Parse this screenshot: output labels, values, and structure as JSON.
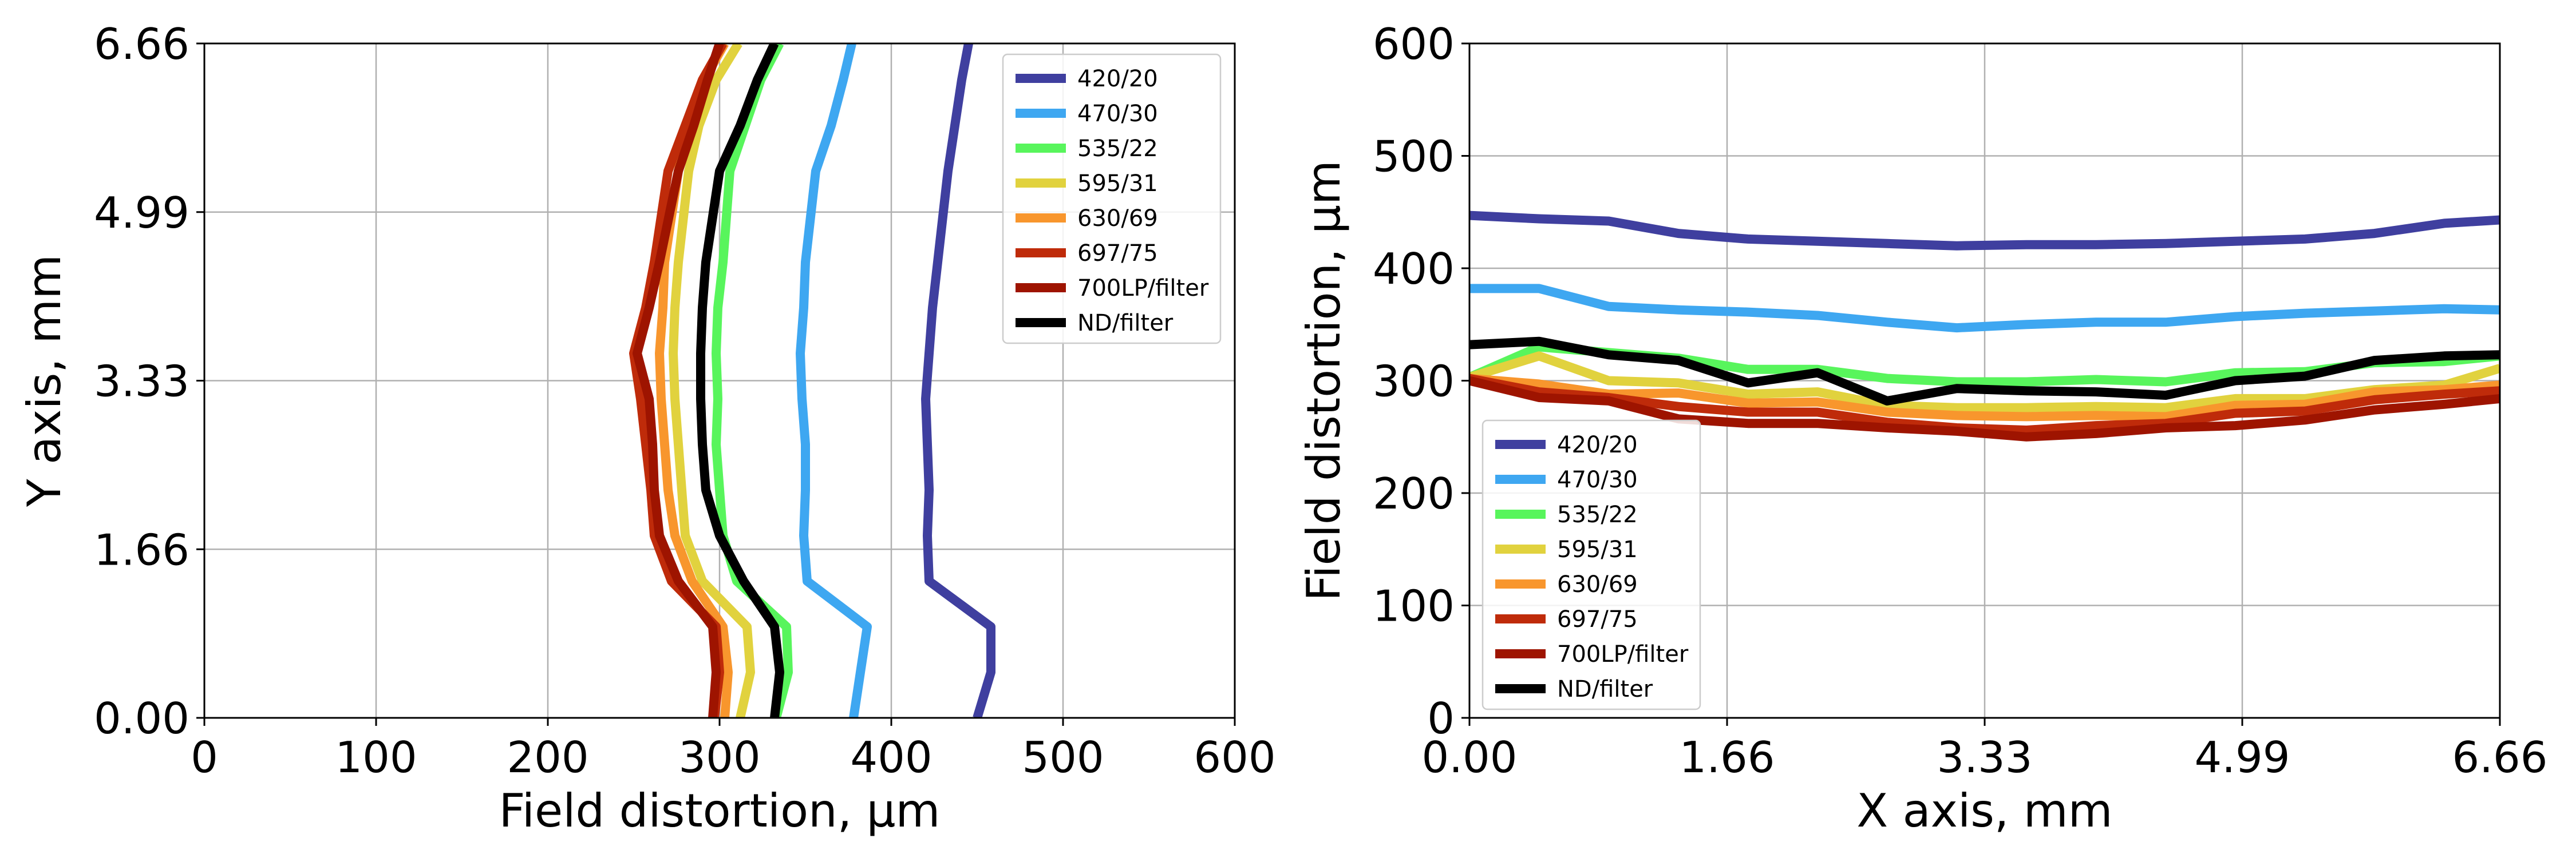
{
  "chart_data": [
    {
      "type": "line",
      "xlabel": "Field distortion, µm",
      "ylabel": "Y axis, mm",
      "xlim": [
        0,
        600
      ],
      "ylim": [
        0,
        6.66
      ],
      "xticks": [
        "0",
        "100",
        "200",
        "300",
        "400",
        "500",
        "600"
      ],
      "yticks": [
        "0.00",
        "1.66",
        "3.33",
        "4.99",
        "6.66"
      ],
      "grid": true,
      "legend_position": "top-right",
      "series": [
        {
          "name": "420/20",
          "color": "#3f3f9f",
          "x": [
            450,
            458,
            458,
            422,
            421,
            422,
            421,
            420,
            422,
            424,
            427,
            433,
            437,
            441,
            445
          ],
          "y": [
            0.0,
            0.45,
            0.9,
            1.35,
            1.8,
            2.25,
            2.7,
            3.15,
            3.6,
            4.05,
            4.5,
            5.4,
            5.85,
            6.3,
            6.66
          ]
        },
        {
          "name": "470/30",
          "color": "#3ea7f1",
          "x": [
            378,
            382,
            386,
            351,
            349,
            350,
            350,
            348,
            347,
            349,
            350,
            356,
            365,
            372,
            377
          ],
          "y": [
            0.0,
            0.45,
            0.9,
            1.35,
            1.8,
            2.25,
            2.7,
            3.15,
            3.6,
            4.05,
            4.5,
            5.4,
            5.85,
            6.3,
            6.66
          ]
        },
        {
          "name": "535/22",
          "color": "#58f55c",
          "x": [
            333,
            340,
            339,
            310,
            302,
            300,
            298,
            299,
            298,
            299,
            302,
            306,
            315,
            324,
            335
          ],
          "y": [
            0.0,
            0.45,
            0.9,
            1.35,
            1.8,
            2.25,
            2.7,
            3.15,
            3.6,
            4.05,
            4.5,
            5.4,
            5.85,
            6.3,
            6.66
          ]
        },
        {
          "name": "595/31",
          "color": "#e1d23e",
          "x": [
            312,
            318,
            316,
            290,
            280,
            278,
            276,
            274,
            273,
            274,
            276,
            282,
            288,
            298,
            311
          ],
          "y": [
            0.0,
            0.45,
            0.9,
            1.35,
            1.8,
            2.25,
            2.7,
            3.15,
            3.6,
            4.05,
            4.5,
            5.4,
            5.85,
            6.3,
            6.66
          ]
        },
        {
          "name": "630/69",
          "color": "#f8962d",
          "x": [
            303,
            305,
            302,
            284,
            274,
            270,
            268,
            266,
            265,
            267,
            268,
            276,
            282,
            291,
            303
          ],
          "y": [
            0.0,
            0.45,
            0.9,
            1.35,
            1.8,
            2.25,
            2.7,
            3.15,
            3.6,
            4.05,
            4.5,
            5.4,
            5.85,
            6.3,
            6.66
          ]
        },
        {
          "name": "697/75",
          "color": "#bf2b0a",
          "x": [
            297,
            300,
            298,
            272,
            262,
            260,
            257,
            254,
            250,
            257,
            262,
            270,
            280,
            290,
            302
          ],
          "y": [
            0.0,
            0.45,
            0.9,
            1.35,
            1.8,
            2.25,
            2.7,
            3.15,
            3.6,
            4.05,
            4.5,
            5.4,
            5.85,
            6.3,
            6.66
          ]
        },
        {
          "name": "700LP/filter",
          "color": "#9e1400",
          "x": [
            296,
            298,
            296,
            276,
            265,
            262,
            261,
            259,
            252,
            259,
            265,
            276,
            285,
            293,
            300
          ],
          "y": [
            0.0,
            0.45,
            0.9,
            1.35,
            1.8,
            2.25,
            2.7,
            3.15,
            3.6,
            4.05,
            4.5,
            5.4,
            5.85,
            6.3,
            6.66
          ]
        },
        {
          "name": "ND/filter",
          "color": "#000000",
          "x": [
            332,
            335,
            332,
            314,
            300,
            292,
            290,
            289,
            289,
            290,
            292,
            300,
            312,
            322,
            332
          ],
          "y": [
            0.0,
            0.45,
            0.9,
            1.35,
            1.8,
            2.25,
            2.7,
            3.15,
            3.6,
            4.05,
            4.5,
            5.4,
            5.85,
            6.3,
            6.66
          ]
        }
      ]
    },
    {
      "type": "line",
      "xlabel": "X axis, mm",
      "ylabel": "Field distortion, µm",
      "xlim": [
        0,
        6.66
      ],
      "ylim": [
        0,
        600
      ],
      "xticks": [
        "0.00",
        "1.66",
        "3.33",
        "4.99",
        "6.66"
      ],
      "yticks": [
        "0",
        "100",
        "200",
        "300",
        "400",
        "500",
        "600"
      ],
      "grid": true,
      "legend_position": "lower-left",
      "series": [
        {
          "name": "420/20",
          "color": "#3f3f9f",
          "x": [
            0.0,
            0.45,
            0.9,
            1.35,
            1.8,
            2.25,
            2.7,
            3.15,
            3.6,
            4.05,
            4.5,
            4.95,
            5.4,
            5.85,
            6.3,
            6.66
          ],
          "y": [
            447,
            444,
            442,
            431,
            426,
            424,
            422,
            420,
            421,
            421,
            422,
            424,
            426,
            431,
            440,
            443
          ]
        },
        {
          "name": "470/30",
          "color": "#3ea7f1",
          "x": [
            0.0,
            0.45,
            0.9,
            1.35,
            1.8,
            2.25,
            2.7,
            3.15,
            3.6,
            4.05,
            4.5,
            4.95,
            5.4,
            5.85,
            6.3,
            6.66
          ],
          "y": [
            382,
            382,
            366,
            363,
            361,
            358,
            352,
            347,
            350,
            352,
            352,
            357,
            360,
            362,
            364,
            363
          ]
        },
        {
          "name": "535/22",
          "color": "#58f55c",
          "x": [
            0.0,
            0.45,
            0.9,
            1.35,
            1.8,
            2.25,
            2.7,
            3.15,
            3.6,
            4.05,
            4.5,
            4.95,
            5.4,
            5.85,
            6.3,
            6.66
          ],
          "y": [
            303,
            330,
            325,
            320,
            310,
            310,
            302,
            299,
            299,
            301,
            299,
            307,
            308,
            316,
            317,
            322
          ]
        },
        {
          "name": "595/31",
          "color": "#e1d23e",
          "x": [
            0.0,
            0.45,
            0.9,
            1.35,
            1.8,
            2.25,
            2.7,
            3.15,
            3.6,
            4.05,
            4.5,
            4.95,
            5.4,
            5.85,
            6.3,
            6.66
          ],
          "y": [
            303,
            322,
            300,
            298,
            288,
            290,
            278,
            276,
            276,
            277,
            276,
            284,
            284,
            292,
            296,
            311
          ]
        },
        {
          "name": "630/69",
          "color": "#f8962d",
          "x": [
            0.0,
            0.45,
            0.9,
            1.35,
            1.8,
            2.25,
            2.7,
            3.15,
            3.6,
            4.05,
            4.5,
            4.95,
            5.4,
            5.85,
            6.3,
            6.66
          ],
          "y": [
            302,
            297,
            288,
            289,
            280,
            281,
            272,
            269,
            268,
            269,
            268,
            278,
            279,
            290,
            292,
            296
          ]
        },
        {
          "name": "697/75",
          "color": "#bf2b0a",
          "x": [
            0.0,
            0.45,
            0.9,
            1.35,
            1.8,
            2.25,
            2.7,
            3.15,
            3.6,
            4.05,
            4.5,
            4.95,
            5.4,
            5.85,
            6.3,
            6.66
          ],
          "y": [
            302,
            290,
            285,
            277,
            272,
            272,
            263,
            258,
            256,
            260,
            262,
            271,
            273,
            283,
            288,
            291
          ]
        },
        {
          "name": "700LP/filter",
          "color": "#9e1400",
          "x": [
            0.0,
            0.45,
            0.9,
            1.35,
            1.8,
            2.25,
            2.7,
            3.15,
            3.6,
            4.05,
            4.5,
            4.95,
            5.4,
            5.85,
            6.3,
            6.66
          ],
          "y": [
            300,
            285,
            282,
            266,
            262,
            262,
            258,
            255,
            250,
            253,
            258,
            260,
            265,
            274,
            279,
            284
          ]
        },
        {
          "name": "ND/filter",
          "color": "#000000",
          "x": [
            0.0,
            0.45,
            0.9,
            1.35,
            1.8,
            2.25,
            2.7,
            3.15,
            3.6,
            4.05,
            4.5,
            4.95,
            5.4,
            5.85,
            6.3,
            6.66
          ],
          "y": [
            332,
            335,
            323,
            318,
            298,
            307,
            282,
            293,
            291,
            290,
            287,
            300,
            304,
            318,
            322,
            323
          ]
        }
      ]
    }
  ]
}
